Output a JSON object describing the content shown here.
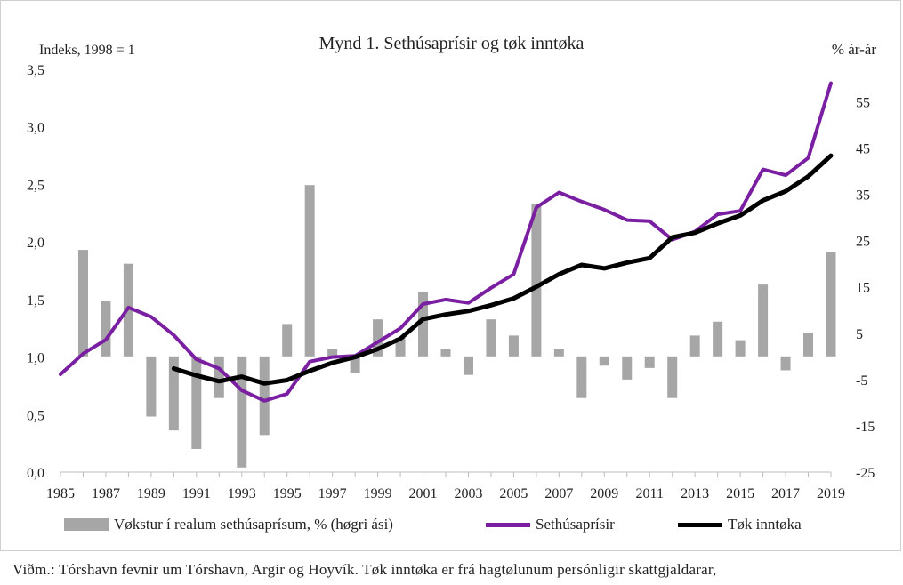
{
  "chart_data": {
    "type": "bar+line",
    "title": "Mynd 1. Sethúsaprísir og tøk inntøka",
    "ylabel_left": "Indeks, 1998 = 1",
    "ylabel_right": "% ár-ár",
    "ylim_left": [
      0,
      3.5
    ],
    "ylim_right": [
      -25,
      62
    ],
    "yticks_left": [
      "0,0",
      "0,5",
      "1,0",
      "1,5",
      "2,0",
      "2,5",
      "3,0",
      "3,5"
    ],
    "yticks_left_values": [
      0,
      0.5,
      1.0,
      1.5,
      2.0,
      2.5,
      3.0,
      3.5
    ],
    "yticks_right": [
      "-25",
      "-15",
      "-5",
      "5",
      "15",
      "25",
      "35",
      "45",
      "55"
    ],
    "yticks_right_values": [
      -25,
      -15,
      -5,
      5,
      15,
      25,
      35,
      45,
      55
    ],
    "x": [
      1985,
      1986,
      1987,
      1988,
      1989,
      1990,
      1991,
      1992,
      1993,
      1994,
      1995,
      1996,
      1997,
      1998,
      1999,
      2000,
      2001,
      2002,
      2003,
      2004,
      2005,
      2006,
      2007,
      2008,
      2009,
      2010,
      2011,
      2012,
      2013,
      2014,
      2015,
      2016,
      2017,
      2018,
      2019
    ],
    "xtick_labels": [
      "1985",
      "1987",
      "1989",
      "1991",
      "1993",
      "1995",
      "1997",
      "1999",
      "2001",
      "2003",
      "2005",
      "2007",
      "2009",
      "2011",
      "2013",
      "2015",
      "2017",
      "2019"
    ],
    "series": [
      {
        "name": "Vøkstur í realum sethúsaprísum, % (høgri ási)",
        "type": "bar",
        "axis": "right",
        "color": "#a6a6a6",
        "values": [
          null,
          23,
          12,
          20,
          -13,
          -16,
          -20,
          -9,
          -24,
          -17,
          7,
          37,
          1.5,
          -3.5,
          8,
          4,
          14,
          1.5,
          -4,
          8,
          4.5,
          33,
          1.5,
          -9,
          -2,
          -5,
          -2.5,
          -9,
          4.5,
          7.5,
          3.5,
          15.5,
          -3,
          5,
          22.5
        ]
      },
      {
        "name": "Sethúsaprísir",
        "type": "line",
        "axis": "left",
        "color": "#7a1fa2",
        "values": [
          0.85,
          1.03,
          1.15,
          1.43,
          1.35,
          1.19,
          0.98,
          0.9,
          0.71,
          0.62,
          0.68,
          0.96,
          1.0,
          1.01,
          1.13,
          1.25,
          1.46,
          1.5,
          1.47,
          1.6,
          1.72,
          2.3,
          2.43,
          2.35,
          2.28,
          2.19,
          2.18,
          2.02,
          2.09,
          2.24,
          2.27,
          2.63,
          2.58,
          2.73,
          3.38
        ]
      },
      {
        "name": "Tøk inntøka",
        "type": "line",
        "axis": "left",
        "color": "#000000",
        "values": [
          null,
          null,
          null,
          null,
          null,
          0.9,
          0.84,
          0.79,
          0.83,
          0.77,
          0.8,
          0.88,
          0.95,
          1.0,
          1.07,
          1.16,
          1.33,
          1.37,
          1.4,
          1.45,
          1.51,
          1.61,
          1.72,
          1.8,
          1.77,
          1.82,
          1.86,
          2.04,
          2.08,
          2.16,
          2.23,
          2.36,
          2.44,
          2.57,
          2.75
        ]
      }
    ],
    "legend_position": "bottom",
    "grid": false
  },
  "source_note": "Viðm.: Tórshavn fevnir um Tórshavn, Argir og Hoyvík. Tøk inntøka er frá hagtølunum persónligir skattgjaldarar,"
}
